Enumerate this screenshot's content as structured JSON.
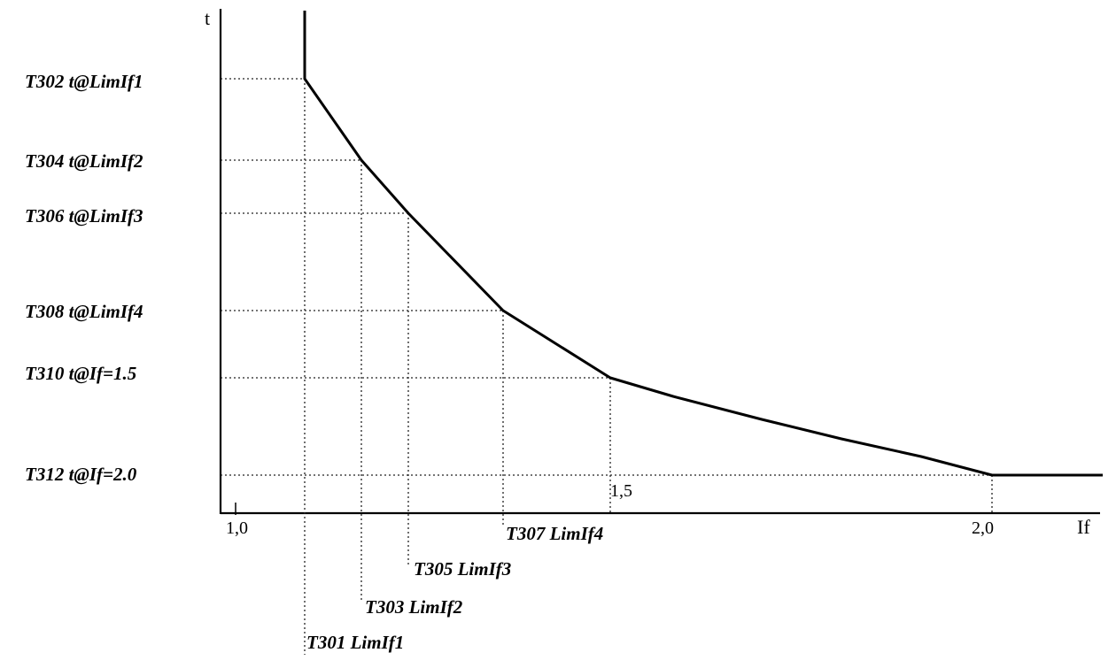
{
  "axes": {
    "y_name": "t",
    "x_name": "If"
  },
  "x_ticks": [
    "1,0",
    "1,5",
    "2,0"
  ],
  "y_labels": [
    "T302 t@LimIf1",
    "T304 t@LimIf2",
    "T306 t@LimIf3",
    "T308 t@LimIf4",
    "T310 t@If=1.5",
    "T312 t@If=2.0"
  ],
  "x_labels": [
    "T307 LimIf4",
    "T305 LimIf3",
    "T303 LimIf2",
    "T301 LimIf1"
  ]
}
